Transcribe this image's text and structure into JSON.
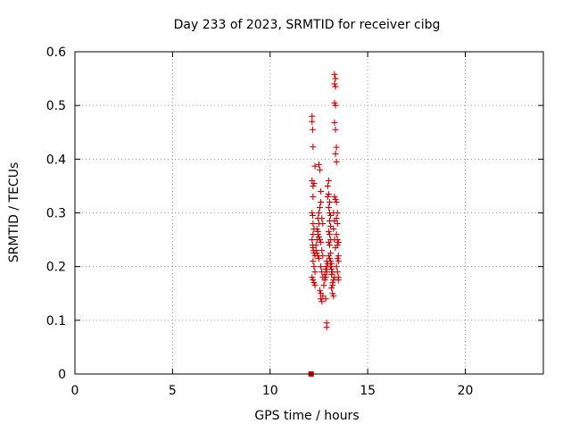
{
  "chart_data": {
    "type": "scatter",
    "title": "Day 233 of 2023, SRMTID for receiver cibg",
    "xlabel": "GPS time / hours",
    "ylabel": "SRMTID / TECUs",
    "xlim": [
      0,
      24
    ],
    "ylim": [
      0,
      0.6
    ],
    "x_ticks": [
      0,
      5,
      10,
      15,
      20
    ],
    "x_tick_labels": [
      "0",
      "5",
      "10",
      "15",
      "20"
    ],
    "y_ticks": [
      0,
      0.1,
      0.2,
      0.3,
      0.4,
      0.5,
      0.6
    ],
    "y_tick_labels": [
      "0",
      "0.1",
      "0.2",
      "0.3",
      "0.4",
      "0.5",
      "0.6"
    ],
    "grid": true,
    "marker": "plus",
    "color": "#cc0000",
    "series": [
      {
        "name": "SRMTID",
        "points": [
          [
            12.15,
            0.48
          ],
          [
            12.15,
            0.47
          ],
          [
            12.18,
            0.455
          ],
          [
            12.2,
            0.423
          ],
          [
            12.3,
            0.387
          ],
          [
            12.15,
            0.36
          ],
          [
            12.2,
            0.35
          ],
          [
            12.25,
            0.355
          ],
          [
            12.2,
            0.33
          ],
          [
            12.15,
            0.3
          ],
          [
            12.18,
            0.295
          ],
          [
            12.2,
            0.28
          ],
          [
            12.25,
            0.27
          ],
          [
            12.2,
            0.26
          ],
          [
            12.15,
            0.25
          ],
          [
            12.18,
            0.24
          ],
          [
            12.2,
            0.235
          ],
          [
            12.22,
            0.23
          ],
          [
            12.25,
            0.225
          ],
          [
            12.3,
            0.22
          ],
          [
            12.2,
            0.21
          ],
          [
            12.25,
            0.2
          ],
          [
            12.3,
            0.19
          ],
          [
            12.15,
            0.18
          ],
          [
            12.2,
            0.175
          ],
          [
            12.25,
            0.17
          ],
          [
            12.3,
            0.165
          ],
          [
            12.35,
            0.24
          ],
          [
            12.4,
            0.25
          ],
          [
            12.45,
            0.26
          ],
          [
            12.4,
            0.27
          ],
          [
            12.45,
            0.265
          ],
          [
            12.5,
            0.255
          ],
          [
            12.35,
            0.23
          ],
          [
            12.4,
            0.225
          ],
          [
            12.45,
            0.22
          ],
          [
            12.5,
            0.215
          ],
          [
            12.55,
            0.25
          ],
          [
            12.5,
            0.28
          ],
          [
            12.45,
            0.29
          ],
          [
            12.5,
            0.3
          ],
          [
            12.55,
            0.31
          ],
          [
            12.6,
            0.34
          ],
          [
            12.55,
            0.38
          ],
          [
            12.5,
            0.39
          ],
          [
            12.6,
            0.32
          ],
          [
            12.65,
            0.29
          ],
          [
            12.7,
            0.28
          ],
          [
            12.6,
            0.245
          ],
          [
            12.65,
            0.23
          ],
          [
            12.7,
            0.22
          ],
          [
            12.6,
            0.2
          ],
          [
            12.65,
            0.19
          ],
          [
            12.7,
            0.18
          ],
          [
            12.55,
            0.155
          ],
          [
            12.6,
            0.14
          ],
          [
            12.65,
            0.135
          ],
          [
            12.6,
            0.15
          ],
          [
            12.7,
            0.145
          ],
          [
            12.75,
            0.165
          ],
          [
            12.8,
            0.175
          ],
          [
            12.85,
            0.18
          ],
          [
            12.8,
            0.185
          ],
          [
            12.9,
            0.19
          ],
          [
            12.85,
            0.195
          ],
          [
            12.9,
            0.2
          ],
          [
            12.95,
            0.205
          ],
          [
            12.9,
            0.21
          ],
          [
            12.85,
            0.14
          ],
          [
            12.9,
            0.095
          ],
          [
            12.9,
            0.087
          ],
          [
            12.95,
            0.35
          ],
          [
            13.0,
            0.36
          ],
          [
            13.0,
            0.335
          ],
          [
            12.95,
            0.33
          ],
          [
            13.05,
            0.32
          ],
          [
            13.0,
            0.31
          ],
          [
            13.05,
            0.3
          ],
          [
            13.1,
            0.295
          ],
          [
            13.05,
            0.285
          ],
          [
            13.1,
            0.275
          ],
          [
            13.0,
            0.265
          ],
          [
            13.05,
            0.26
          ],
          [
            13.1,
            0.25
          ],
          [
            13.0,
            0.245
          ],
          [
            13.05,
            0.24
          ],
          [
            13.1,
            0.225
          ],
          [
            13.0,
            0.22
          ],
          [
            13.05,
            0.215
          ],
          [
            13.1,
            0.21
          ],
          [
            13.15,
            0.205
          ],
          [
            13.1,
            0.2
          ],
          [
            13.15,
            0.195
          ],
          [
            13.2,
            0.19
          ],
          [
            13.15,
            0.185
          ],
          [
            13.2,
            0.17
          ],
          [
            13.15,
            0.16
          ],
          [
            13.2,
            0.15
          ],
          [
            13.25,
            0.145
          ],
          [
            13.2,
            0.165
          ],
          [
            13.25,
            0.175
          ],
          [
            13.3,
            0.18
          ],
          [
            13.3,
            0.558
          ],
          [
            13.35,
            0.55
          ],
          [
            13.3,
            0.54
          ],
          [
            13.35,
            0.535
          ],
          [
            13.3,
            0.505
          ],
          [
            13.35,
            0.5
          ],
          [
            13.3,
            0.468
          ],
          [
            13.35,
            0.455
          ],
          [
            13.4,
            0.422
          ],
          [
            13.35,
            0.41
          ],
          [
            13.4,
            0.395
          ],
          [
            13.3,
            0.33
          ],
          [
            13.35,
            0.325
          ],
          [
            13.4,
            0.32
          ],
          [
            13.45,
            0.3
          ],
          [
            13.4,
            0.29
          ],
          [
            13.45,
            0.28
          ],
          [
            13.4,
            0.26
          ],
          [
            13.45,
            0.25
          ],
          [
            13.5,
            0.245
          ],
          [
            13.45,
            0.24
          ],
          [
            13.5,
            0.22
          ],
          [
            13.45,
            0.215
          ],
          [
            13.5,
            0.21
          ],
          [
            13.4,
            0.2
          ],
          [
            13.45,
            0.19
          ],
          [
            13.5,
            0.18
          ],
          [
            13.5,
            0.175
          ],
          [
            13.35,
            0.235
          ],
          [
            13.3,
            0.25
          ],
          [
            13.25,
            0.27
          ],
          [
            13.3,
            0.285
          ],
          [
            13.25,
            0.3
          ]
        ]
      },
      {
        "name": "zero-value",
        "marker": "square",
        "points": [
          [
            12.1,
            0.0
          ]
        ]
      }
    ]
  }
}
